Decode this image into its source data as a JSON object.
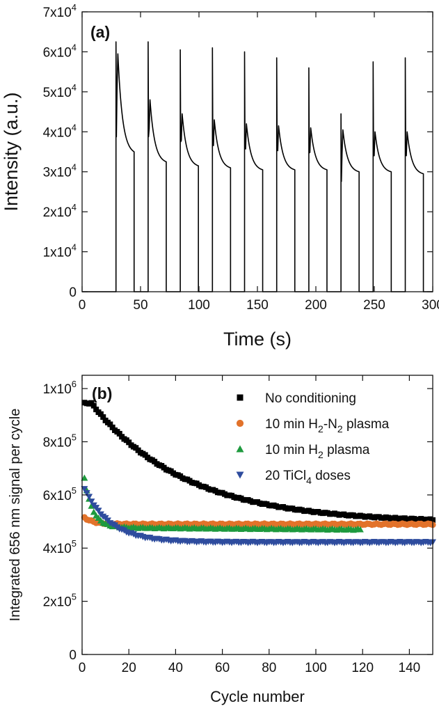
{
  "chart_data": [
    {
      "type": "line",
      "panel_label": "(a)",
      "xlabel": "Time (s)",
      "ylabel": "Intensity (a.u.)",
      "xlim": [
        0,
        300
      ],
      "ylim": [
        0,
        70000
      ],
      "x_ticks": [
        {
          "v": 0,
          "label": "0"
        },
        {
          "v": 50,
          "label": "50"
        },
        {
          "v": 100,
          "label": "100"
        },
        {
          "v": 150,
          "label": "150"
        },
        {
          "v": 200,
          "label": "200"
        },
        {
          "v": 250,
          "label": "250"
        },
        {
          "v": 300,
          "label": "300"
        }
      ],
      "y_ticks": [
        {
          "v": 0,
          "label": "0"
        },
        {
          "v": 10000,
          "mant": "1x10",
          "exp": "4"
        },
        {
          "v": 20000,
          "mant": "2x10",
          "exp": "4"
        },
        {
          "v": 30000,
          "mant": "3x10",
          "exp": "4"
        },
        {
          "v": 40000,
          "mant": "4x10",
          "exp": "4"
        },
        {
          "v": 50000,
          "mant": "5x10",
          "exp": "4"
        },
        {
          "v": 60000,
          "mant": "6x10",
          "exp": "4"
        },
        {
          "v": 70000,
          "mant": "7x10",
          "exp": "4"
        }
      ],
      "pulses": [
        {
          "t_on": 29.0,
          "t_off": 44.5,
          "spike": 62500,
          "peak": 59500,
          "end": 35000
        },
        {
          "t_on": 56.5,
          "t_off": 72.0,
          "spike": 62500,
          "peak": 48000,
          "end": 32500
        },
        {
          "t_on": 84.0,
          "t_off": 99.5,
          "spike": 60500,
          "peak": 44500,
          "end": 31500
        },
        {
          "t_on": 111.5,
          "t_off": 127.0,
          "spike": 61000,
          "peak": 43000,
          "end": 31000
        },
        {
          "t_on": 139.0,
          "t_off": 154.5,
          "spike": 60000,
          "peak": 42000,
          "end": 30500
        },
        {
          "t_on": 166.5,
          "t_off": 182.0,
          "spike": 58500,
          "peak": 41500,
          "end": 30500
        },
        {
          "t_on": 194.0,
          "t_off": 209.5,
          "spike": 56000,
          "peak": 41000,
          "end": 30500
        },
        {
          "t_on": 221.5,
          "t_off": 237.0,
          "spike": 44500,
          "peak": 40500,
          "end": 30000
        },
        {
          "t_on": 249.0,
          "t_off": 264.5,
          "spike": 57500,
          "peak": 40000,
          "end": 30000
        },
        {
          "t_on": 276.5,
          "t_off": 292.0,
          "spike": 58500,
          "peak": 40000,
          "end": 29500
        }
      ]
    },
    {
      "type": "scatter",
      "panel_label": "(b)",
      "xlabel": "Cycle number",
      "ylabel": "Integrated 656 nm signal per cycle",
      "xlim": [
        0,
        150
      ],
      "ylim": [
        0,
        1050000
      ],
      "x_ticks": [
        {
          "v": 0,
          "label": "0"
        },
        {
          "v": 20,
          "label": "20"
        },
        {
          "v": 40,
          "label": "40"
        },
        {
          "v": 60,
          "label": "60"
        },
        {
          "v": 80,
          "label": "80"
        },
        {
          "v": 100,
          "label": "100"
        },
        {
          "v": 120,
          "label": "120"
        },
        {
          "v": 140,
          "label": "140"
        }
      ],
      "y_ticks": [
        {
          "v": 0,
          "label": "0"
        },
        {
          "v": 200000,
          "mant": "2x10",
          "exp": "5"
        },
        {
          "v": 400000,
          "mant": "4x10",
          "exp": "5"
        },
        {
          "v": 600000,
          "mant": "6x10",
          "exp": "5"
        },
        {
          "v": 800000,
          "mant": "8x10",
          "exp": "5"
        },
        {
          "v": 1000000,
          "mant": "1x10",
          "exp": "6"
        }
      ],
      "series": [
        {
          "legend": [
            {
              "t": "No conditioning"
            }
          ],
          "marker": "square",
          "color": "#000000",
          "n_start": 1,
          "n_end": 150,
          "model": {
            "kind": "decay",
            "start": 945000,
            "plateau": 495000,
            "tau": 40,
            "delay": 3
          },
          "points": [
            [
              1,
              945000
            ],
            [
              3,
              945000
            ],
            [
              5,
              915000
            ],
            [
              10,
              840000
            ],
            [
              15,
              775000
            ],
            [
              20,
              725000
            ],
            [
              25,
              685000
            ],
            [
              30,
              652000
            ],
            [
              40,
              610000
            ],
            [
              50,
              585000
            ],
            [
              60,
              566000
            ],
            [
              70,
              552000
            ],
            [
              80,
              543000
            ],
            [
              90,
              535000
            ],
            [
              100,
              529000
            ],
            [
              110,
              524000
            ],
            [
              120,
              520000
            ],
            [
              130,
              517000
            ],
            [
              140,
              514000
            ],
            [
              150,
              512000
            ]
          ]
        },
        {
          "legend": [
            {
              "t": "10 min H"
            },
            {
              "t": "2",
              "sub": true
            },
            {
              "t": "-N"
            },
            {
              "t": "2",
              "sub": true
            },
            {
              "t": " plasma"
            }
          ],
          "marker": "circle",
          "color": "#E2722A",
          "n_start": 1,
          "n_end": 150,
          "model": {
            "kind": "flat",
            "start": 515000,
            "plateau": 490000,
            "tau": 4
          },
          "points": [
            [
              1,
              515000
            ],
            [
              10,
              492000
            ],
            [
              50,
              490000
            ],
            [
              100,
              489000
            ],
            [
              150,
              488000
            ]
          ]
        },
        {
          "legend": [
            {
              "t": "10 min H"
            },
            {
              "t": "2",
              "sub": true
            },
            {
              "t": " plasma"
            }
          ],
          "marker": "triangle-up",
          "color": "#1E9A3E",
          "n_start": 1,
          "n_end": 119,
          "model": {
            "kind": "decay",
            "start": 665000,
            "plateau": 478000,
            "tau": 3.5,
            "delay": 0,
            "drift": -8000
          },
          "points": [
            [
              1,
              665000
            ],
            [
              3,
              590000
            ],
            [
              5,
              540000
            ],
            [
              10,
              490000
            ],
            [
              30,
              483000
            ],
            [
              60,
              480000
            ],
            [
              119,
              472000
            ]
          ]
        },
        {
          "legend": [
            {
              "t": "20 TiCl"
            },
            {
              "t": "4",
              "sub": true
            },
            {
              "t": " doses"
            }
          ],
          "marker": "triangle-down",
          "color": "#2E4C9E",
          "n_start": 1,
          "n_end": 150,
          "model": {
            "kind": "decay",
            "start": 625000,
            "plateau": 422000,
            "tau": 11,
            "delay": 0
          },
          "points": [
            [
              1,
              625000
            ],
            [
              5,
              560000
            ],
            [
              10,
              505000
            ],
            [
              20,
              458000
            ],
            [
              40,
              436000
            ],
            [
              80,
              427000
            ],
            [
              150,
              418000
            ]
          ]
        }
      ]
    }
  ]
}
